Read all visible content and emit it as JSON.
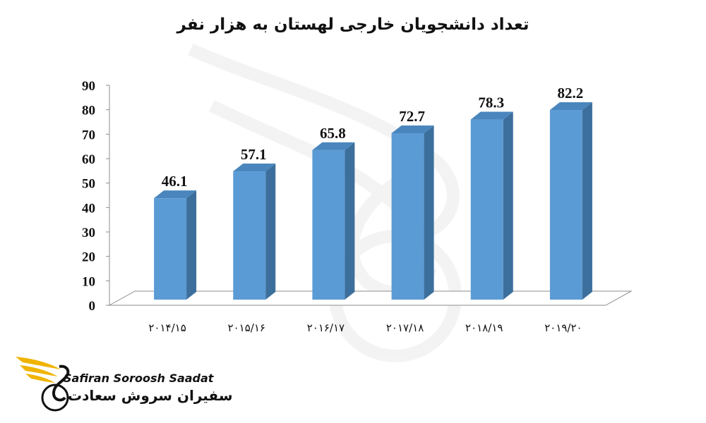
{
  "chart_data": {
    "type": "bar",
    "title": "تعداد دانشجویان خارجی لهستان به هزار نفر",
    "categories": [
      "۲۰۱۴/۱۵",
      "۲۰۱۵/۱۶",
      "۲۰۱۶/۱۷",
      "۲۰۱۷/۱۸",
      "۲۰۱۸/۱۹",
      "۲۰۱۹/۲۰"
    ],
    "values": [
      46.1,
      57.1,
      65.8,
      72.7,
      78.3,
      82.2
    ],
    "value_labels": [
      "46.1",
      "57.1",
      "65.8",
      "72.7",
      "78.3",
      "82.2"
    ],
    "y_ticks": [
      "0",
      "10",
      "20",
      "30",
      "40",
      "50",
      "60",
      "70",
      "80",
      "90"
    ],
    "ylim": [
      0,
      90
    ],
    "xlabel": "",
    "ylabel": "",
    "grid": false,
    "style": "3d",
    "bar_color": "#5b9bd5"
  },
  "logo": {
    "name_en": "Safiran Soroosh Saadat",
    "name_fa": "سفیران سروش سعادت",
    "accent_color": "#f0b400"
  }
}
